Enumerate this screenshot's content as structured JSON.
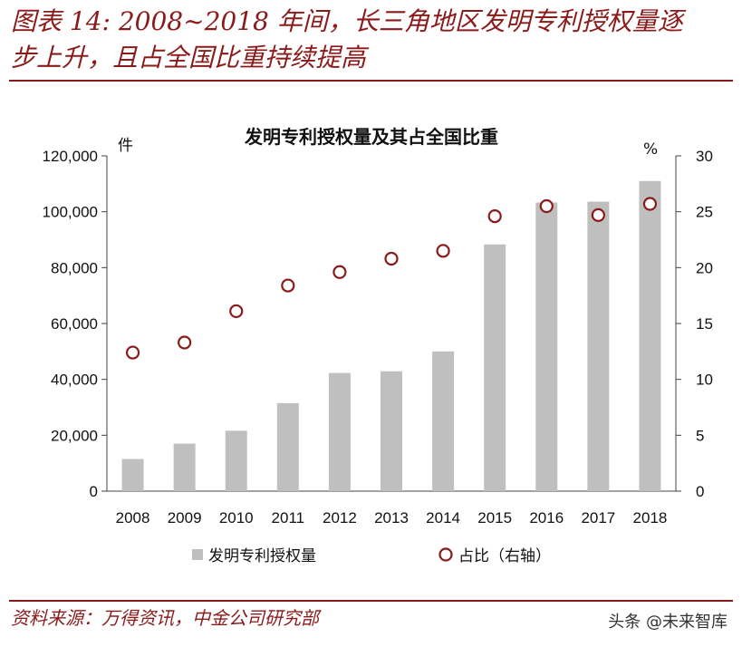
{
  "figure": {
    "title_line1": "图表 14: 2008~2018 年间，长三角地区发明专利授权量逐",
    "title_line2": "步上升，且占全国比重持续提高",
    "source": "资料来源：万得资讯，中金公司研究部",
    "watermark": "头条 @未来智库"
  },
  "colors": {
    "accent": "#8b1a1a",
    "bar": "#bfbfbf",
    "marker_stroke": "#8b1a1a",
    "marker_fill": "#ffffff"
  },
  "chart_data": {
    "type": "bar",
    "title": "发明专利授权量及其占全国比重",
    "left_unit": "件",
    "right_unit": "%",
    "categories": [
      "2008",
      "2009",
      "2010",
      "2011",
      "2012",
      "2013",
      "2014",
      "2015",
      "2016",
      "2017",
      "2018"
    ],
    "series": [
      {
        "name": "发明专利授权量",
        "type": "bar",
        "axis": "left",
        "values": [
          11500,
          17000,
          21600,
          31500,
          42300,
          42900,
          50000,
          88300,
          103300,
          103600,
          111000
        ]
      },
      {
        "name": "占比（右轴）",
        "type": "scatter",
        "axis": "right",
        "values": [
          12.4,
          13.3,
          16.1,
          18.4,
          19.6,
          20.8,
          21.5,
          24.6,
          25.5,
          24.7,
          25.7
        ]
      }
    ],
    "ylim_left": [
      0,
      120000
    ],
    "yticks_left": [
      "0",
      "20,000",
      "40,000",
      "60,000",
      "80,000",
      "100,000",
      "120,000"
    ],
    "ylim_right": [
      0,
      30
    ],
    "yticks_right": [
      "0",
      "5",
      "10",
      "15",
      "20",
      "25",
      "30"
    ],
    "grid": false,
    "legend_position": "bottom"
  }
}
